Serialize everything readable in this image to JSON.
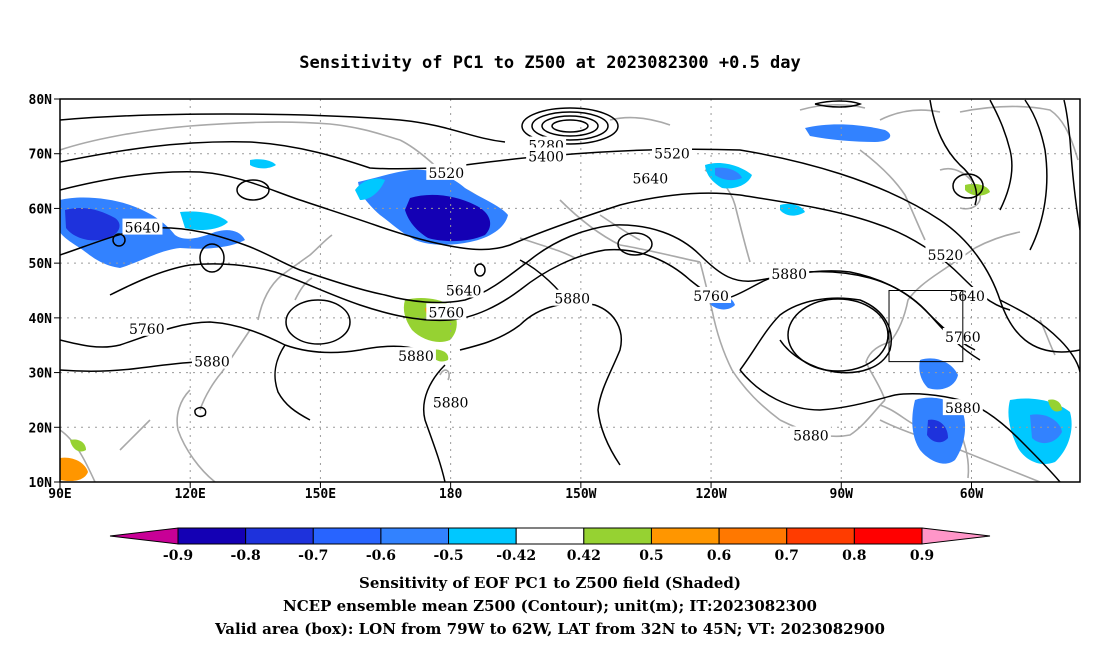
{
  "title": "Sensitivity of PC1 to Z500 at 2023082300 +0.5 day",
  "lat_ticks": [
    {
      "lat": 80,
      "label": "80N"
    },
    {
      "lat": 70,
      "label": "70N"
    },
    {
      "lat": 60,
      "label": "60N"
    },
    {
      "lat": 50,
      "label": "50N"
    },
    {
      "lat": 40,
      "label": "40N"
    },
    {
      "lat": 30,
      "label": "30N"
    },
    {
      "lat": 20,
      "label": "20N"
    },
    {
      "lat": 10,
      "label": "10N"
    }
  ],
  "lon_ticks": [
    {
      "lon": 90,
      "label": "90E"
    },
    {
      "lon": 120,
      "label": "120E"
    },
    {
      "lon": 150,
      "label": "150E"
    },
    {
      "lon": 180,
      "label": "180"
    },
    {
      "lon": 210,
      "label": "150W"
    },
    {
      "lon": 240,
      "label": "120W"
    },
    {
      "lon": 270,
      "label": "90W"
    },
    {
      "lon": 300,
      "label": "60W"
    }
  ],
  "contour_labels": [
    {
      "text": "5280",
      "lon": 202,
      "lat": 71.5
    },
    {
      "text": "5400",
      "lon": 202,
      "lat": 69.5
    },
    {
      "text": "5520",
      "lon": 179,
      "lat": 66.5
    },
    {
      "text": "5520",
      "lon": 231,
      "lat": 70
    },
    {
      "text": "5640",
      "lon": 226,
      "lat": 65.5
    },
    {
      "text": "5640",
      "lon": 109,
      "lat": 56.5
    },
    {
      "text": "5520",
      "lon": 294,
      "lat": 51.5
    },
    {
      "text": "5880",
      "lon": 258,
      "lat": 48
    },
    {
      "text": "5640",
      "lon": 299,
      "lat": 44
    },
    {
      "text": "5640",
      "lon": 183,
      "lat": 45
    },
    {
      "text": "5760",
      "lon": 179,
      "lat": 41
    },
    {
      "text": "5760",
      "lon": 240,
      "lat": 44
    },
    {
      "text": "5880",
      "lon": 208,
      "lat": 43.5
    },
    {
      "text": "5760",
      "lon": 298,
      "lat": 36.5
    },
    {
      "text": "5760",
      "lon": 110,
      "lat": 38
    },
    {
      "text": "5880",
      "lon": 172,
      "lat": 33
    },
    {
      "text": "5880",
      "lon": 125,
      "lat": 32
    },
    {
      "text": "5880",
      "lon": 180,
      "lat": 24.5
    },
    {
      "text": "5880",
      "lon": 298,
      "lat": 23.5
    },
    {
      "text": "5880",
      "lon": 263,
      "lat": 18.5
    }
  ],
  "colorbar": {
    "colors": [
      "#c80096",
      "#1400b4",
      "#1e32dc",
      "#2864ff",
      "#3282ff",
      "#00c8ff",
      "#ffffff",
      "#96d232",
      "#ff9600",
      "#ff7800",
      "#ff3c00",
      "#ff0000",
      "#ff96c8"
    ],
    "labels": [
      "-0.9",
      "-0.8",
      "-0.7",
      "-0.6",
      "-0.5",
      "-0.42",
      "0.42",
      "0.5",
      "0.6",
      "0.7",
      "0.8",
      "0.9"
    ]
  },
  "caption": [
    "Sensitivity of EOF PC1 to Z500 field (Shaded)",
    "NCEP ensemble mean Z500 (Contour); unit(m); IT:2023082300",
    "Valid area (box): LON from 79W to 62W, LAT from 32N to 45N; VT: 2023082900"
  ],
  "valid_box": {
    "lon_min": 281,
    "lon_max": 298,
    "lat_min": 32,
    "lat_max": 45
  }
}
